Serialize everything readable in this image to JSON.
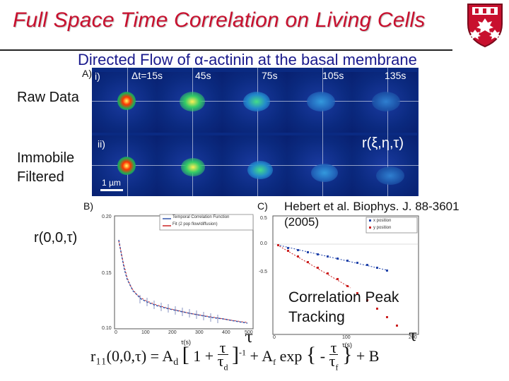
{
  "slide": {
    "title": "Full Space Time Correlation on Living Cells",
    "subtitle": "Directed Flow of α-actinin at the basal membrane"
  },
  "panel_a": {
    "label": "A)",
    "row1_label": "i)",
    "row2_label": "ii)",
    "times": [
      "Δt=15s",
      "45s",
      "75s",
      "105s",
      "135s"
    ],
    "func_label": "r(ξ,η,τ)",
    "scalebar": "1 µm",
    "side_raw": "Raw Data",
    "side_immobile": "Immobile",
    "side_filtered": "Filtered"
  },
  "panel_b": {
    "label": "B)",
    "ylabel": "r(0,0,τ)",
    "legend": [
      "Temporal Correlation Function",
      "Fit (2 pop flow/diffusion)"
    ],
    "yticks": [
      "0.20",
      "0.15",
      "0.10"
    ],
    "xticks": [
      "0",
      "100",
      "200",
      "300",
      "400",
      "500"
    ],
    "xunit": "τ(s)",
    "tau": "τ"
  },
  "panel_c": {
    "label": "C)",
    "legend": [
      "x position",
      "y position"
    ],
    "yticks": [
      "0.5",
      "0.0",
      "-0.5"
    ],
    "xticks": [
      "0",
      "100",
      "200"
    ],
    "xunit": "τ(s)",
    "tau": "τ"
  },
  "reference": {
    "line1": "Hebert et al. Biophys. J. 88-3601",
    "line2": "(2005)"
  },
  "tracking": {
    "line1": "Correlation Peak",
    "line2": "Tracking"
  },
  "formula": {
    "lhs": "r₁₁(0,0,τ) = A",
    "sub_d": "d",
    "bracket_open": "1 +",
    "frac_num": "τ",
    "frac_den": "τ",
    "exp_part": "+ A",
    "sub_f": "f",
    "exp_word": "exp",
    "exp_num": "τ",
    "exp_den": "τ",
    "tail": "+ B",
    "power": "-1"
  },
  "colors": {
    "title": "#c8102e",
    "subtitle": "#1a1a8c",
    "panel_bg": "#0a2a82"
  }
}
